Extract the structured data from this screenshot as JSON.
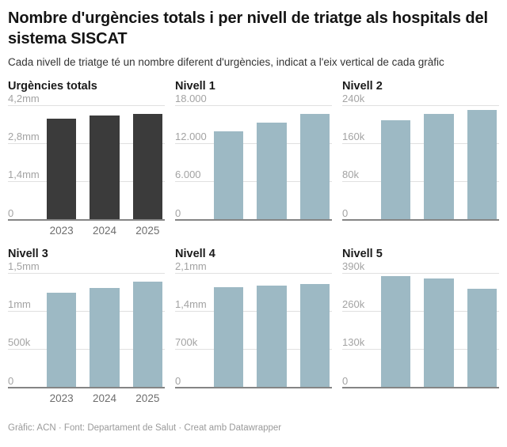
{
  "header": {
    "title": "Nombre d'urgències totals i per nivell de triatge als hospitals del sistema SISCAT",
    "subtitle": "Cada nivell de triatge té un nombre diferent d'urgències, indicat a l'eix vertical de cada gràfic"
  },
  "footer": {
    "credit": "Gràfic: ACN · Font: Departament de Salut · Creat amb Datawrapper"
  },
  "colors": {
    "dark_bar": "#3b3b3b",
    "blue_bar": "#9db9c4",
    "gridline": "#e0e0e0",
    "baseline": "#858585",
    "y_tick_text": "#a3a3a3",
    "x_tick_text": "#6e6e6e"
  },
  "chart_data": [
    {
      "type": "bar",
      "title": "Urgències totals",
      "categories": [
        "2023",
        "2024",
        "2025"
      ],
      "values": [
        3720000,
        3840000,
        3910000
      ],
      "ylim": [
        0,
        4200000
      ],
      "yticks": [
        {
          "label": "4,2mm",
          "value": 4200000
        },
        {
          "label": "2,8mm",
          "value": 2800000
        },
        {
          "label": "1,4mm",
          "value": 1400000
        },
        {
          "label": "0",
          "value": 0
        }
      ],
      "show_x_labels": true,
      "bar_color": "#3b3b3b",
      "grid": true,
      "legend": "none"
    },
    {
      "type": "bar",
      "title": "Nivell 1",
      "categories": [
        "2023",
        "2024",
        "2025"
      ],
      "values": [
        14000,
        15400,
        16700
      ],
      "ylim": [
        0,
        18000
      ],
      "yticks": [
        {
          "label": "18.000",
          "value": 18000
        },
        {
          "label": "12.000",
          "value": 12000
        },
        {
          "label": "6.000",
          "value": 6000
        },
        {
          "label": "0",
          "value": 0
        }
      ],
      "show_x_labels": false,
      "bar_color": "#9db9c4",
      "grid": true,
      "legend": "none"
    },
    {
      "type": "bar",
      "title": "Nivell 2",
      "categories": [
        "2023",
        "2024",
        "2025"
      ],
      "values": [
        210000,
        222000,
        231000
      ],
      "ylim": [
        0,
        240000
      ],
      "yticks": [
        {
          "label": "240k",
          "value": 240000
        },
        {
          "label": "160k",
          "value": 160000
        },
        {
          "label": "80k",
          "value": 80000
        },
        {
          "label": "0",
          "value": 0
        }
      ],
      "show_x_labels": false,
      "bar_color": "#9db9c4",
      "grid": true,
      "legend": "none"
    },
    {
      "type": "bar",
      "title": "Nivell 3",
      "categories": [
        "2023",
        "2024",
        "2025"
      ],
      "values": [
        1250000,
        1310000,
        1390000
      ],
      "ylim": [
        0,
        1500000
      ],
      "yticks": [
        {
          "label": "1,5mm",
          "value": 1500000
        },
        {
          "label": "1mm",
          "value": 1000000
        },
        {
          "label": "500k",
          "value": 500000
        },
        {
          "label": "0",
          "value": 0
        }
      ],
      "show_x_labels": true,
      "bar_color": "#9db9c4",
      "grid": true,
      "legend": "none"
    },
    {
      "type": "bar",
      "title": "Nivell 4",
      "categories": [
        "2023",
        "2024",
        "2025"
      ],
      "values": [
        1850000,
        1870000,
        1910000
      ],
      "ylim": [
        0,
        2100000
      ],
      "yticks": [
        {
          "label": "2,1mm",
          "value": 2100000
        },
        {
          "label": "1,4mm",
          "value": 1400000
        },
        {
          "label": "700k",
          "value": 700000
        },
        {
          "label": "0",
          "value": 0
        }
      ],
      "show_x_labels": false,
      "bar_color": "#9db9c4",
      "grid": true,
      "legend": "none"
    },
    {
      "type": "bar",
      "title": "Nivell 5",
      "categories": [
        "2023",
        "2024",
        "2025"
      ],
      "values": [
        381000,
        374000,
        339000
      ],
      "ylim": [
        0,
        390000
      ],
      "yticks": [
        {
          "label": "390k",
          "value": 390000
        },
        {
          "label": "260k",
          "value": 260000
        },
        {
          "label": "130k",
          "value": 130000
        },
        {
          "label": "0",
          "value": 0
        }
      ],
      "show_x_labels": false,
      "bar_color": "#9db9c4",
      "grid": true,
      "legend": "none"
    }
  ]
}
